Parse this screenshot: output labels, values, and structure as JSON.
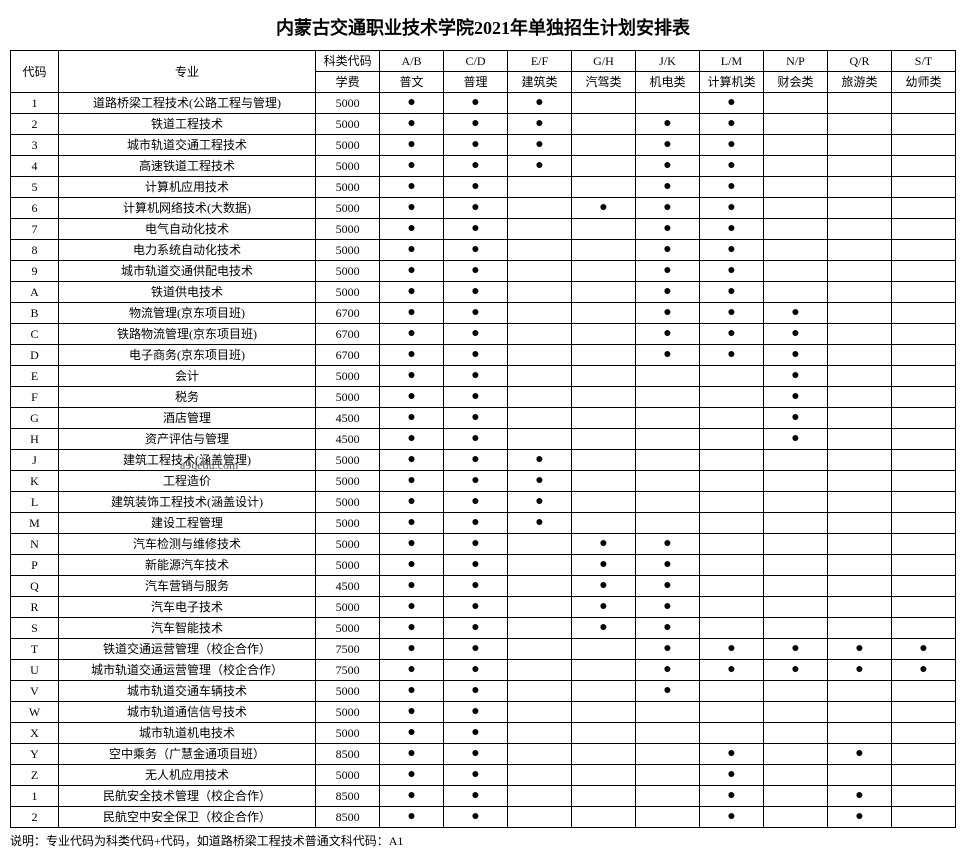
{
  "title": "内蒙古交通职业技术学院2021年单独招生计划安排表",
  "watermark": "a9qedu.com",
  "header": {
    "code": "代码",
    "major": "专业",
    "catcode": "科类代码",
    "fee": "学费",
    "cols": [
      {
        "top": "A/B",
        "bot": "普文"
      },
      {
        "top": "C/D",
        "bot": "普理"
      },
      {
        "top": "E/F",
        "bot": "建筑类"
      },
      {
        "top": "G/H",
        "bot": "汽驾类"
      },
      {
        "top": "J/K",
        "bot": "机电类"
      },
      {
        "top": "L/M",
        "bot": "计算机类"
      },
      {
        "top": "N/P",
        "bot": "财会类"
      },
      {
        "top": "Q/R",
        "bot": "旅游类"
      },
      {
        "top": "S/T",
        "bot": "幼师类"
      }
    ]
  },
  "rows": [
    {
      "c": "1",
      "m": "道路桥梁工程技术(公路工程与管理)",
      "f": "5000",
      "d": [
        1,
        1,
        1,
        0,
        0,
        1,
        0,
        0,
        0
      ]
    },
    {
      "c": "2",
      "m": "铁道工程技术",
      "f": "5000",
      "d": [
        1,
        1,
        1,
        0,
        1,
        1,
        0,
        0,
        0
      ]
    },
    {
      "c": "3",
      "m": "城市轨道交通工程技术",
      "f": "5000",
      "d": [
        1,
        1,
        1,
        0,
        1,
        1,
        0,
        0,
        0
      ]
    },
    {
      "c": "4",
      "m": "高速铁道工程技术",
      "f": "5000",
      "d": [
        1,
        1,
        1,
        0,
        1,
        1,
        0,
        0,
        0
      ]
    },
    {
      "c": "5",
      "m": "计算机应用技术",
      "f": "5000",
      "d": [
        1,
        1,
        0,
        0,
        1,
        1,
        0,
        0,
        0
      ]
    },
    {
      "c": "6",
      "m": "计算机网络技术(大数据)",
      "f": "5000",
      "d": [
        1,
        1,
        0,
        1,
        1,
        1,
        0,
        0,
        0
      ]
    },
    {
      "c": "7",
      "m": "电气自动化技术",
      "f": "5000",
      "d": [
        1,
        1,
        0,
        0,
        1,
        1,
        0,
        0,
        0
      ]
    },
    {
      "c": "8",
      "m": "电力系统自动化技术",
      "f": "5000",
      "d": [
        1,
        1,
        0,
        0,
        1,
        1,
        0,
        0,
        0
      ]
    },
    {
      "c": "9",
      "m": "城市轨道交通供配电技术",
      "f": "5000",
      "d": [
        1,
        1,
        0,
        0,
        1,
        1,
        0,
        0,
        0
      ]
    },
    {
      "c": "A",
      "m": "铁道供电技术",
      "f": "5000",
      "d": [
        1,
        1,
        0,
        0,
        1,
        1,
        0,
        0,
        0
      ]
    },
    {
      "c": "B",
      "m": "物流管理(京东项目班)",
      "f": "6700",
      "d": [
        1,
        1,
        0,
        0,
        1,
        1,
        1,
        0,
        0
      ]
    },
    {
      "c": "C",
      "m": "铁路物流管理(京东项目班)",
      "f": "6700",
      "d": [
        1,
        1,
        0,
        0,
        1,
        1,
        1,
        0,
        0
      ]
    },
    {
      "c": "D",
      "m": "电子商务(京东项目班)",
      "f": "6700",
      "d": [
        1,
        1,
        0,
        0,
        1,
        1,
        1,
        0,
        0
      ]
    },
    {
      "c": "E",
      "m": "会计",
      "f": "5000",
      "d": [
        1,
        1,
        0,
        0,
        0,
        0,
        1,
        0,
        0
      ]
    },
    {
      "c": "F",
      "m": "税务",
      "f": "5000",
      "d": [
        1,
        1,
        0,
        0,
        0,
        0,
        1,
        0,
        0
      ]
    },
    {
      "c": "G",
      "m": "酒店管理",
      "f": "4500",
      "d": [
        1,
        1,
        0,
        0,
        0,
        0,
        1,
        0,
        0
      ]
    },
    {
      "c": "H",
      "m": "资产评估与管理",
      "f": "4500",
      "d": [
        1,
        1,
        0,
        0,
        0,
        0,
        1,
        0,
        0
      ]
    },
    {
      "c": "J",
      "m": "建筑工程技术(涵盖管理)",
      "f": "5000",
      "d": [
        1,
        1,
        1,
        0,
        0,
        0,
        0,
        0,
        0
      ]
    },
    {
      "c": "K",
      "m": "工程造价",
      "f": "5000",
      "d": [
        1,
        1,
        1,
        0,
        0,
        0,
        0,
        0,
        0
      ]
    },
    {
      "c": "L",
      "m": "建筑装饰工程技术(涵盖设计)",
      "f": "5000",
      "d": [
        1,
        1,
        1,
        0,
        0,
        0,
        0,
        0,
        0
      ]
    },
    {
      "c": "M",
      "m": "建设工程管理",
      "f": "5000",
      "d": [
        1,
        1,
        1,
        0,
        0,
        0,
        0,
        0,
        0
      ]
    },
    {
      "c": "N",
      "m": "汽车检测与维修技术",
      "f": "5000",
      "d": [
        1,
        1,
        0,
        1,
        1,
        0,
        0,
        0,
        0
      ]
    },
    {
      "c": "P",
      "m": "新能源汽车技术",
      "f": "5000",
      "d": [
        1,
        1,
        0,
        1,
        1,
        0,
        0,
        0,
        0
      ]
    },
    {
      "c": "Q",
      "m": "汽车营销与服务",
      "f": "4500",
      "d": [
        1,
        1,
        0,
        1,
        1,
        0,
        0,
        0,
        0
      ]
    },
    {
      "c": "R",
      "m": "汽车电子技术",
      "f": "5000",
      "d": [
        1,
        1,
        0,
        1,
        1,
        0,
        0,
        0,
        0
      ]
    },
    {
      "c": "S",
      "m": "汽车智能技术",
      "f": "5000",
      "d": [
        1,
        1,
        0,
        1,
        1,
        0,
        0,
        0,
        0
      ]
    },
    {
      "c": "T",
      "m": "铁道交通运营管理（校企合作）",
      "f": "7500",
      "d": [
        1,
        1,
        0,
        0,
        1,
        1,
        1,
        1,
        1
      ]
    },
    {
      "c": "U",
      "m": "城市轨道交通运营管理（校企合作）",
      "f": "7500",
      "d": [
        1,
        1,
        0,
        0,
        1,
        1,
        1,
        1,
        1
      ]
    },
    {
      "c": "V",
      "m": "城市轨道交通车辆技术",
      "f": "5000",
      "d": [
        1,
        1,
        0,
        0,
        1,
        0,
        0,
        0,
        0
      ]
    },
    {
      "c": "W",
      "m": "城市轨道通信信号技术",
      "f": "5000",
      "d": [
        1,
        1,
        0,
        0,
        0,
        0,
        0,
        0,
        0
      ]
    },
    {
      "c": "X",
      "m": "城市轨道机电技术",
      "f": "5000",
      "d": [
        1,
        1,
        0,
        0,
        0,
        0,
        0,
        0,
        0
      ]
    },
    {
      "c": "Y",
      "m": "空中乘务（广慧金通项目班）",
      "f": "8500",
      "d": [
        1,
        1,
        0,
        0,
        0,
        1,
        0,
        1,
        0
      ]
    },
    {
      "c": "Z",
      "m": "无人机应用技术",
      "f": "5000",
      "d": [
        1,
        1,
        0,
        0,
        0,
        1,
        0,
        0,
        0
      ]
    },
    {
      "c": "1",
      "m": "民航安全技术管理（校企合作）",
      "f": "8500",
      "d": [
        1,
        1,
        0,
        0,
        0,
        1,
        0,
        1,
        0
      ]
    },
    {
      "c": "2",
      "m": "民航空中安全保卫（校企合作）",
      "f": "8500",
      "d": [
        1,
        1,
        0,
        0,
        0,
        1,
        0,
        1,
        0
      ]
    }
  ],
  "note": "说明：专业代码为科类代码+代码，如道路桥梁工程技术普通文科代码：A1",
  "dot_glyph": "●"
}
